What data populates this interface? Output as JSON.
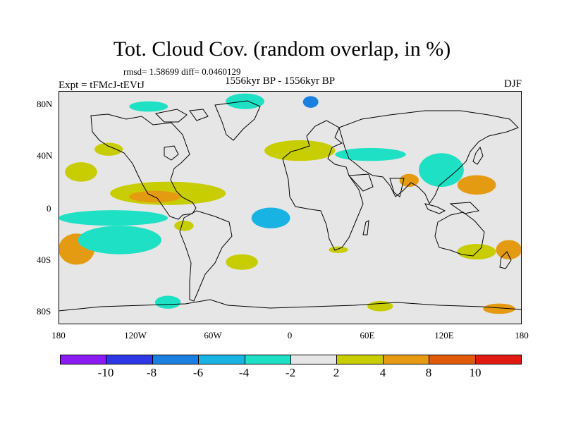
{
  "title": "Tot. Cloud Cov. (random overlap, in %)",
  "stats": "rmsd= 1.58699 diff= 0.0460129",
  "experiment": "Expt = tFMcJ-tEVtJ",
  "period": "1556kyr BP - 1556kyr BP",
  "season": "DJF",
  "background_color": "#e6e6e6",
  "lat_ticks": [
    "80N",
    "40N",
    "0",
    "40S",
    "80S"
  ],
  "lon_ticks": [
    "180",
    "120W",
    "60W",
    "0",
    "60E",
    "120E",
    "180"
  ],
  "colorbar": {
    "colors": [
      "#8b1cf1",
      "#2e37e4",
      "#1b7fdf",
      "#18b3e3",
      "#1ee0c4",
      "#e6e6e6",
      "#c8cd00",
      "#e49b12",
      "#e05a0a",
      "#e01a10"
    ],
    "labels": [
      "-10",
      "-8",
      "-6",
      "-4",
      "-2",
      "2",
      "4",
      "8",
      "10"
    ]
  },
  "chart_data": {
    "type": "map",
    "projection": "cylindrical-equidistant",
    "lon_range": [
      -180,
      180
    ],
    "lat_range": [
      -90,
      90
    ],
    "variable": "Tot. Cloud Cov. (random overlap, in %)",
    "anomaly_regions": [
      {
        "lon": [
          -125,
          -95
        ],
        "lat": [
          74,
          82
        ],
        "level": "-4 to -2"
      },
      {
        "lon": [
          -50,
          -20
        ],
        "lat": [
          76,
          88
        ],
        "level": "-4 to -2"
      },
      {
        "lon": [
          10,
          22
        ],
        "lat": [
          77,
          86
        ],
        "level": "-8 to -4"
      },
      {
        "lon": [
          -152,
          -130
        ],
        "lat": [
          40,
          50
        ],
        "level": "2 to 4"
      },
      {
        "lon": [
          -175,
          -150
        ],
        "lat": [
          20,
          35
        ],
        "level": "2 to 4"
      },
      {
        "lon": [
          -140,
          -50
        ],
        "lat": [
          2,
          20
        ],
        "level": "2 to 4"
      },
      {
        "lon": [
          -125,
          -85
        ],
        "lat": [
          4,
          13
        ],
        "level": "4 to 8"
      },
      {
        "lon": [
          -180,
          -95
        ],
        "lat": [
          -14,
          -2
        ],
        "level": "-4 to -2"
      },
      {
        "lon": [
          -180,
          -152
        ],
        "lat": [
          -44,
          -20
        ],
        "level": "2 to 8"
      },
      {
        "lon": [
          -165,
          -100
        ],
        "lat": [
          -36,
          -14
        ],
        "level": "-4 to -2"
      },
      {
        "lon": [
          -90,
          -75
        ],
        "lat": [
          -18,
          -10
        ],
        "level": "2 to 4"
      },
      {
        "lon": [
          -50,
          -25
        ],
        "lat": [
          -48,
          -36
        ],
        "level": "2 to 4"
      },
      {
        "lon": [
          -105,
          -85
        ],
        "lat": [
          -78,
          -68
        ],
        "level": "-4 to -2"
      },
      {
        "lon": [
          -30,
          0
        ],
        "lat": [
          -16,
          0
        ],
        "level": "-8 to -2"
      },
      {
        "lon": [
          30,
          45
        ],
        "lat": [
          -35,
          -30
        ],
        "level": "2 to 4"
      },
      {
        "lon": [
          -20,
          35
        ],
        "lat": [
          36,
          52
        ],
        "level": "2 to 4"
      },
      {
        "lon": [
          35,
          90
        ],
        "lat": [
          36,
          46
        ],
        "level": "-4 to -2"
      },
      {
        "lon": [
          85,
          100
        ],
        "lat": [
          16,
          26
        ],
        "level": "4 to 8"
      },
      {
        "lon": [
          100,
          135
        ],
        "lat": [
          16,
          42
        ],
        "level": "-4 to -2"
      },
      {
        "lon": [
          130,
          160
        ],
        "lat": [
          10,
          25
        ],
        "level": "4 to 8"
      },
      {
        "lon": [
          130,
          160
        ],
        "lat": [
          -40,
          -28
        ],
        "level": "2 to 4"
      },
      {
        "lon": [
          160,
          180
        ],
        "lat": [
          -40,
          -25
        ],
        "level": "4 to 8"
      },
      {
        "lon": [
          60,
          80
        ],
        "lat": [
          -80,
          -72
        ],
        "level": "2 to 4"
      },
      {
        "lon": [
          150,
          175
        ],
        "lat": [
          -82,
          -74
        ],
        "level": "4 to 8"
      }
    ]
  }
}
